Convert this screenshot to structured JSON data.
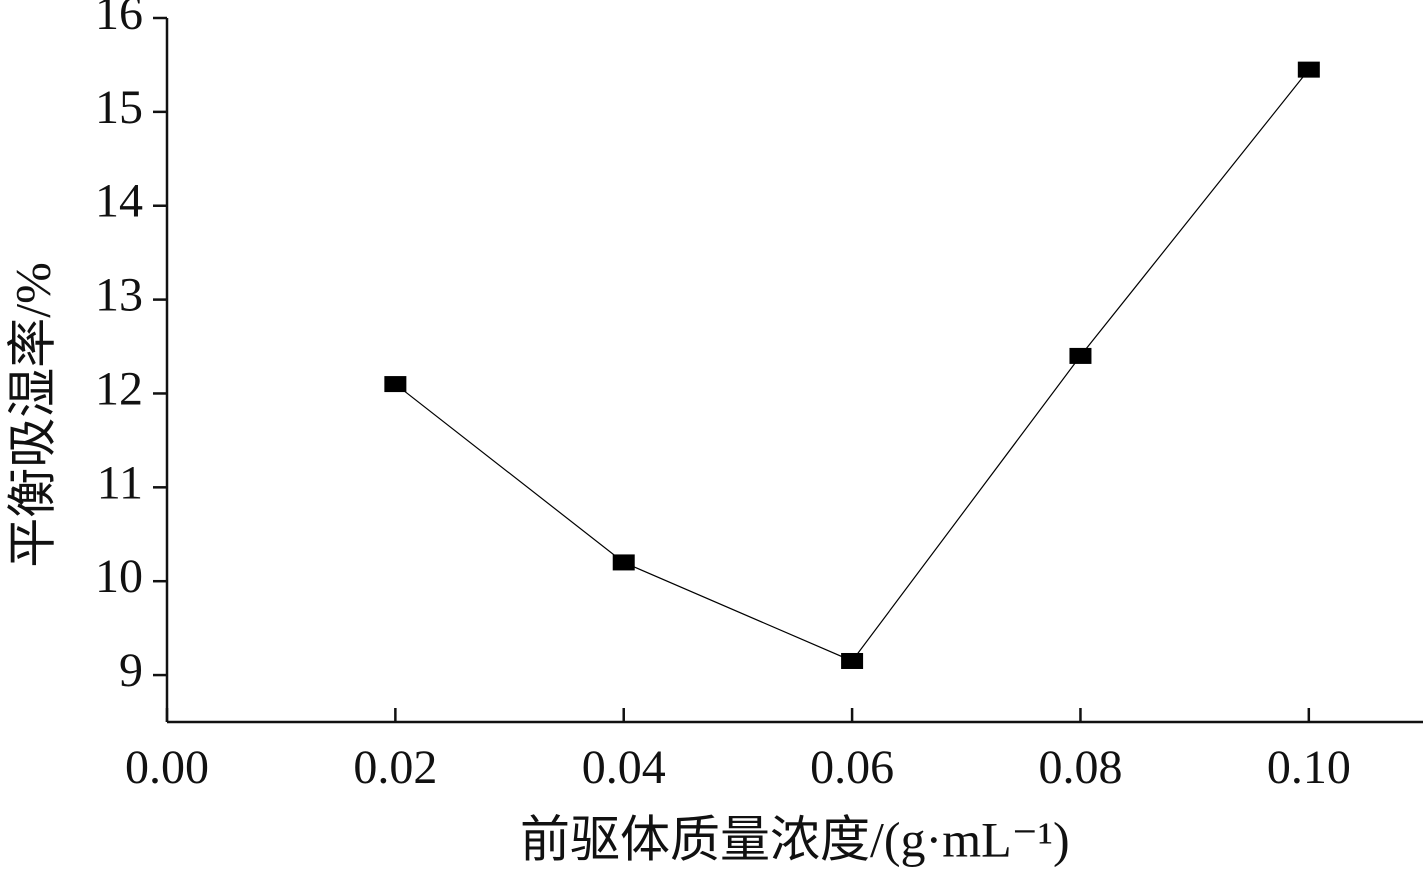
{
  "chart_data": {
    "type": "line",
    "xlabel": "前驱体质量浓度/(g·mL⁻¹)",
    "ylabel": "平衡吸湿率/%",
    "x": [
      0.02,
      0.04,
      0.06,
      0.08,
      0.1
    ],
    "series": [
      {
        "values": [
          12.1,
          10.2,
          9.15,
          12.4,
          15.45
        ],
        "color": "#000000"
      }
    ],
    "xlim": [
      0,
      0.11
    ],
    "xticks": [
      {
        "value": 0,
        "label": "0.00"
      },
      {
        "value": 0.02,
        "label": "0.02"
      },
      {
        "value": 0.04,
        "label": "0.04"
      },
      {
        "value": 0.06,
        "label": "0.06"
      },
      {
        "value": 0.08,
        "label": "0.08"
      },
      {
        "value": 0.1,
        "label": "0.10"
      }
    ],
    "ylim": [
      8.5,
      16
    ],
    "yticks": [
      9,
      10,
      11,
      12,
      13,
      14,
      15,
      16
    ],
    "grid": false
  }
}
